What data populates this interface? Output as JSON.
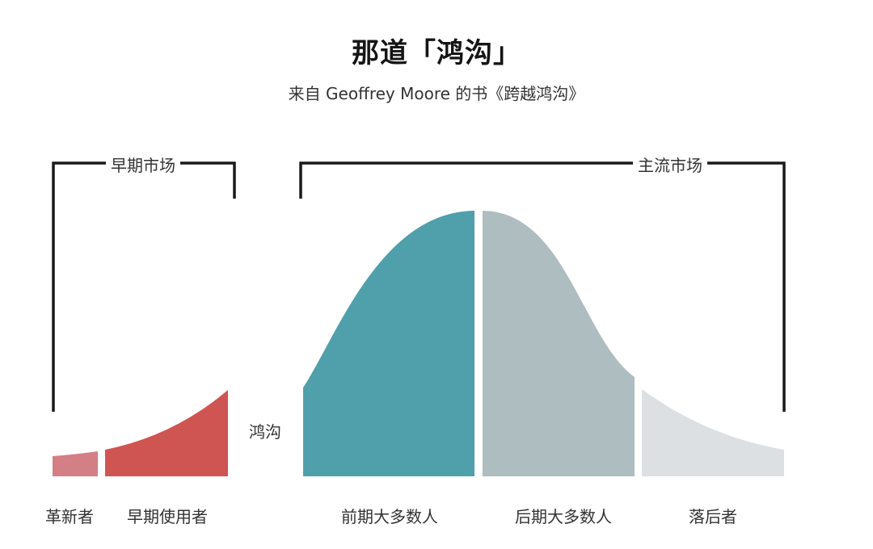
{
  "title": "那道「鸿沟」",
  "subtitle": "来自 Geoffrey Moore 的书《跨越鸿沟》",
  "brackets": {
    "early_market": "早期市场",
    "mainstream_market": "主流市场"
  },
  "chasm_label": "鸿沟",
  "segments": [
    {
      "label": "革新者",
      "color": "#d37f85"
    },
    {
      "label": "早期使用者",
      "color": "#cf5553"
    },
    {
      "label": "前期大多数人",
      "color": "#4fa0ab"
    },
    {
      "label": "后期大多数人",
      "color": "#aebdc0"
    },
    {
      "label": "落后者",
      "color": "#dde0e3"
    }
  ]
}
